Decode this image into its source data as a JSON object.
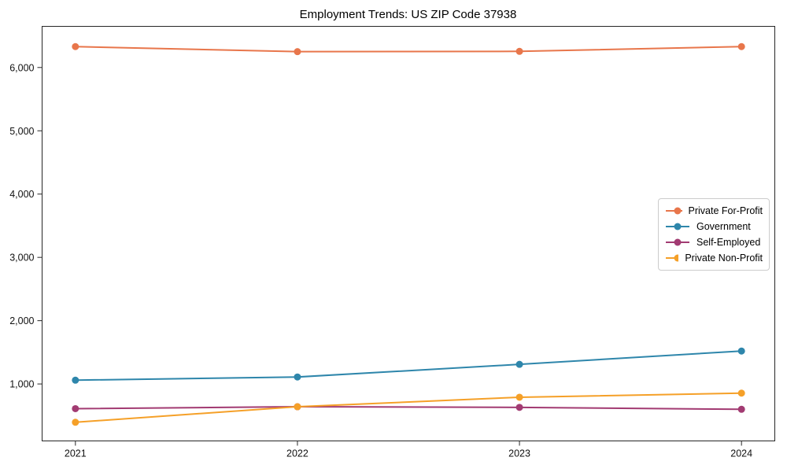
{
  "chart_data": {
    "type": "line",
    "title": "Employment Trends: US ZIP Code 37938",
    "xlabel": "",
    "ylabel": "",
    "x": [
      2021,
      2022,
      2023,
      2024
    ],
    "xtick_labels": [
      "2021",
      "2022",
      "2023",
      "2024"
    ],
    "ytick_values": [
      1000,
      2000,
      3000,
      4000,
      5000,
      6000
    ],
    "ytick_labels": [
      "1,000",
      "2,000",
      "3,000",
      "4,000",
      "5,000",
      "6,000"
    ],
    "xlim": [
      2020.85,
      2024.15
    ],
    "ylim": [
      100,
      6650
    ],
    "grid": false,
    "legend_position": "center-right",
    "axis_color": "#262626",
    "series": [
      {
        "name": "Private For-Profit",
        "color": "#E8764B",
        "values": [
          6330,
          6250,
          6255,
          6330
        ]
      },
      {
        "name": "Government",
        "color": "#2E86AB",
        "values": [
          1060,
          1110,
          1310,
          1520
        ]
      },
      {
        "name": "Self-Employed",
        "color": "#A23B72",
        "values": [
          610,
          640,
          630,
          600
        ]
      },
      {
        "name": "Private Non-Profit",
        "color": "#F5A028",
        "values": [
          395,
          640,
          790,
          855
        ]
      }
    ]
  }
}
